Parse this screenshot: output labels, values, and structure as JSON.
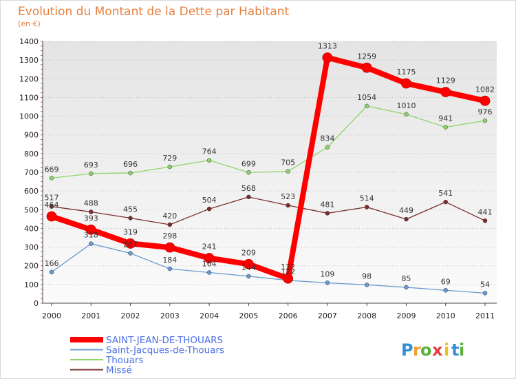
{
  "chart_data": {
    "type": "line",
    "title": "Evolution du Montant de la Dette par Habitant",
    "subtitle": "(en €)",
    "xlabel": "",
    "ylabel": "",
    "x": [
      "2000",
      "2001",
      "2002",
      "2003",
      "2004",
      "2005",
      "2006",
      "2007",
      "2008",
      "2009",
      "2010",
      "2011"
    ],
    "ylim": [
      0,
      1400
    ],
    "yticks": [
      0,
      100,
      200,
      300,
      400,
      500,
      600,
      700,
      800,
      900,
      1000,
      1100,
      1200,
      1300,
      1400
    ],
    "grid": "horizontal dotted",
    "legend_position": "bottom-left",
    "series": [
      {
        "name": "SAINT-JEAN-DE-THOUARS",
        "color": "#ff0000",
        "emphasis": true,
        "values": [
          464,
          393,
          319,
          298,
          241,
          209,
          132,
          1313,
          1259,
          1175,
          1129,
          1082
        ]
      },
      {
        "name": "Saint-Jacques-de-Thouars",
        "color": "#6a9bd0",
        "values": [
          166,
          318,
          267,
          184,
          164,
          144,
          122,
          109,
          98,
          85,
          69,
          54
        ]
      },
      {
        "name": "Thouars",
        "color": "#8fd46a",
        "values": [
          669,
          693,
          696,
          729,
          764,
          699,
          705,
          834,
          1054,
          1010,
          941,
          976
        ]
      },
      {
        "name": "Missé",
        "color": "#7a2e2e",
        "values": [
          517,
          488,
          455,
          420,
          504,
          568,
          523,
          481,
          514,
          449,
          541,
          441
        ]
      }
    ]
  },
  "brand": {
    "letters": [
      "P",
      "r",
      "o",
      "x",
      "i",
      "t",
      "i"
    ],
    "colors": [
      "#2f8fd8",
      "#f0a030",
      "#5ab03a",
      "#e04040",
      "#f0c020",
      "#2f8fd8",
      "#5ab03a"
    ]
  }
}
